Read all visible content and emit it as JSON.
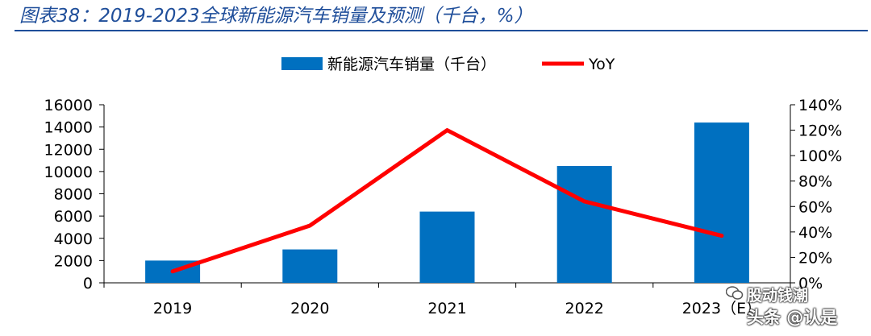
{
  "header": {
    "title": "图表38：2019-2023全球新能源汽车销量及预测（千台，%）"
  },
  "chart_data": {
    "type": "bar",
    "categories": [
      "2019",
      "2020",
      "2021",
      "2022",
      "2023（E）"
    ],
    "series": [
      {
        "name": "新能源汽车销量（千台）",
        "type": "bar",
        "axis": "left",
        "values": [
          2000,
          3000,
          6400,
          10500,
          14400
        ]
      },
      {
        "name": "YoY",
        "type": "line",
        "axis": "right",
        "values": [
          9,
          45,
          120,
          64,
          37
        ]
      }
    ],
    "y_left": {
      "min": 0,
      "max": 16000,
      "step": 2000,
      "ticks": [
        "0",
        "2000",
        "4000",
        "6000",
        "8000",
        "10000",
        "12000",
        "14000",
        "16000"
      ]
    },
    "y_right": {
      "min": 0,
      "max": 140,
      "step": 20,
      "ticks": [
        "0%",
        "20%",
        "40%",
        "60%",
        "80%",
        "100%",
        "120%",
        "140%"
      ]
    },
    "legend_position": "top-center",
    "colors": {
      "bar": "#0070c0",
      "line": "#ff0000",
      "axis": "#000000"
    }
  },
  "watermark": {
    "line1": "股动钱潮",
    "line2": "头条 @认是",
    "icon": "wechat-icon"
  }
}
